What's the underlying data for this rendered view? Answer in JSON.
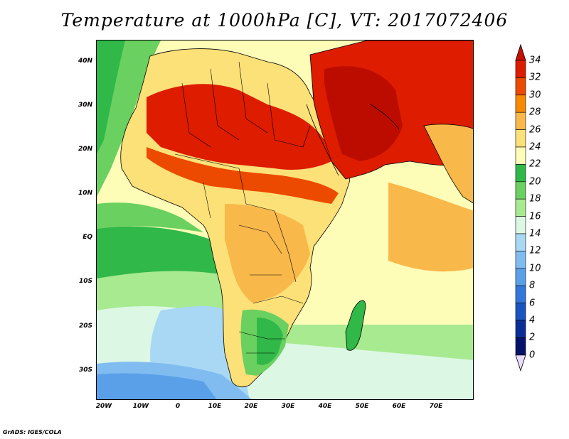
{
  "title": "Temperature at 1000hPa [C], VT: 2017072406",
  "credit": "GrADS: IGES/COLA",
  "map": {
    "lat_labels": [
      "40N",
      "30N",
      "20N",
      "10N",
      "EQ",
      "10S",
      "20S",
      "30S"
    ],
    "lat_values": [
      40,
      30,
      20,
      10,
      0,
      -10,
      -20,
      -30
    ],
    "lon_labels": [
      "20W",
      "10W",
      "0",
      "10E",
      "20E",
      "30E",
      "40E",
      "50E",
      "60E",
      "70E"
    ],
    "lon_values": [
      -20,
      -10,
      0,
      10,
      20,
      30,
      40,
      50,
      60,
      70
    ],
    "lon_range": [
      -22,
      80
    ],
    "lat_range": [
      -36,
      45
    ]
  },
  "colorbar": {
    "labels": [
      "34",
      "32",
      "30",
      "28",
      "26",
      "24",
      "22",
      "20",
      "18",
      "16",
      "14",
      "12",
      "10",
      "8",
      "6",
      "4",
      "2",
      "0"
    ],
    "values": [
      34,
      32,
      30,
      28,
      26,
      24,
      22,
      20,
      18,
      16,
      14,
      12,
      10,
      8,
      6,
      4,
      2,
      0
    ],
    "colors": [
      "#a00000",
      "#dd1c00",
      "#ec4a00",
      "#f78a00",
      "#f9b84a",
      "#fce078",
      "#fefdb8",
      "#30b848",
      "#6ad060",
      "#a8ea90",
      "#dcf8e4",
      "#a8d8f4",
      "#80bcf0",
      "#5aa0e8",
      "#3278dc",
      "#1a54c0",
      "#0a2e96",
      "#06126a"
    ],
    "over_color": "#c81000",
    "under_color": "#e8dcff"
  }
}
